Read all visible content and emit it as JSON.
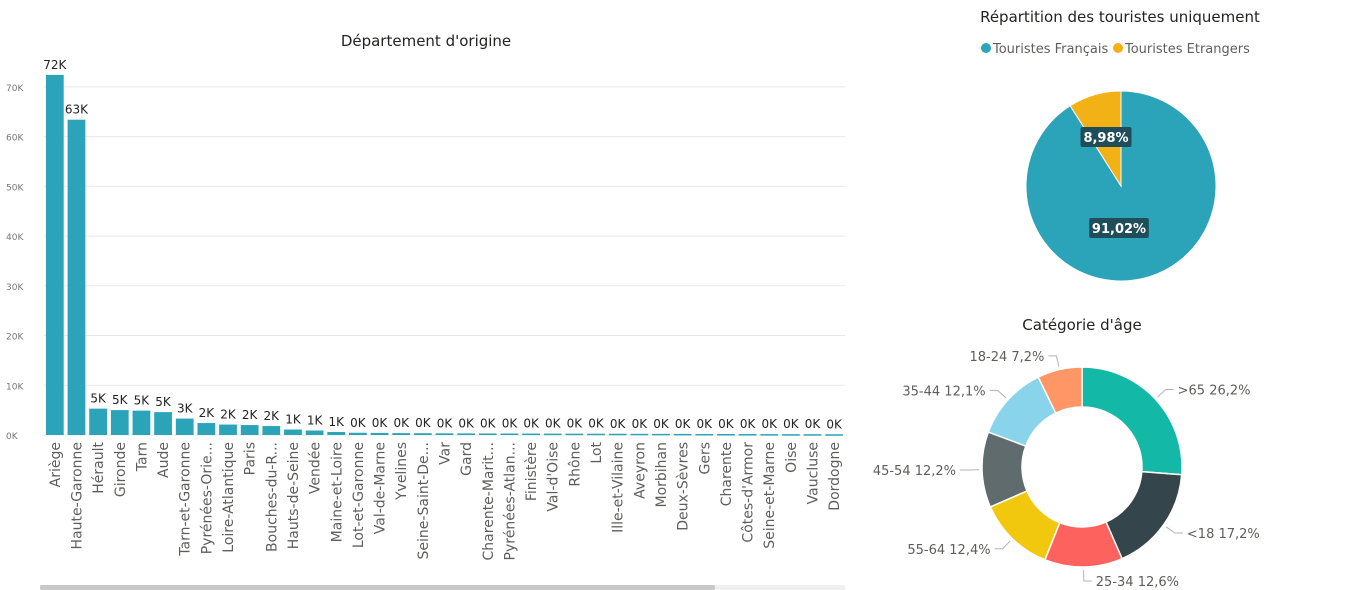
{
  "bar_chart": {
    "title": "Département d'origine",
    "bar_color": "#2ba3b8"
  },
  "pie_chart": {
    "title": "Répartition des touristes uniquement",
    "colors": [
      "#2ba3b8",
      "#f2b215"
    ]
  },
  "donut_chart": {
    "title": "Catégorie d'âge",
    "colors": [
      "#13b8a6",
      "#34464b",
      "#fd625e",
      "#f2c80f",
      "#5f6b6d",
      "#8ad4eb",
      "#fe9666"
    ]
  },
  "chart_data": [
    {
      "type": "bar",
      "title": "Département d'origine",
      "categories": [
        "Ariège",
        "Haute-Garonne",
        "Hérault",
        "Gironde",
        "Tarn",
        "Aude",
        "Tarn-et-Garonne",
        "Pyrénées-Orie...",
        "Loire-Atlantique",
        "Paris",
        "Bouches-du-R...",
        "Hauts-de-Seine",
        "Vendée",
        "Maine-et-Loire",
        "Lot-et-Garonne",
        "Val-de-Marne",
        "Yvelines",
        "Seine-Saint-De...",
        "Var",
        "Gard",
        "Charente-Marit...",
        "Pyrénées-Atlan...",
        "Finistère",
        "Val-d'Oise",
        "Rhône",
        "Lot",
        "Ille-et-Vilaine",
        "Aveyron",
        "Morbihan",
        "Deux-Sèvres",
        "Gers",
        "Charente",
        "Côtes-d'Armor",
        "Seine-et-Marne",
        "Oise",
        "Vaucluse",
        "Dordogne"
      ],
      "values": [
        72400,
        63400,
        5300,
        5000,
        4900,
        4600,
        3300,
        2400,
        2100,
        2000,
        1800,
        1100,
        900,
        600,
        450,
        420,
        380,
        360,
        340,
        320,
        310,
        300,
        290,
        280,
        270,
        260,
        250,
        240,
        230,
        220,
        210,
        200,
        190,
        180,
        170,
        160,
        150
      ],
      "data_labels": [
        "72K",
        "63K",
        "5K",
        "5K",
        "5K",
        "5K",
        "3K",
        "2K",
        "2K",
        "2K",
        "2K",
        "1K",
        "1K",
        "1K",
        "0K",
        "0K",
        "0K",
        "0K",
        "0K",
        "0K",
        "0K",
        "0K",
        "0K",
        "0K",
        "0K",
        "0K",
        "0K",
        "0K",
        "0K",
        "0K",
        "0K",
        "0K",
        "0K",
        "0K",
        "0K",
        "0K",
        "0K"
      ],
      "y_ticks": [
        "0K",
        "10K",
        "20K",
        "30K",
        "40K",
        "50K",
        "60K",
        "70K"
      ],
      "ylim": [
        0,
        75000
      ],
      "grid": true
    },
    {
      "type": "pie",
      "title": "Répartition des touristes uniquement",
      "legend": [
        "Touristes Français",
        "Touristes Etrangers"
      ],
      "legend_placement": "top-center",
      "values": [
        91.02,
        8.98
      ],
      "data_labels": [
        "91,02%",
        "8,98%"
      ]
    },
    {
      "type": "pie",
      "title": "Catégorie d'âge",
      "categories": [
        ">65",
        "<18",
        "25-34",
        "55-64",
        "45-54",
        "35-44",
        "18-24"
      ],
      "values": [
        26.2,
        17.2,
        12.6,
        12.4,
        12.2,
        12.1,
        7.2
      ],
      "data_labels": [
        ">65 26,2%",
        "<18 17,2%",
        "25-34 12,6%",
        "55-64 12,4%",
        "45-54 12,2%",
        "35-44 12,1%",
        "18-24 7,2%"
      ]
    }
  ]
}
